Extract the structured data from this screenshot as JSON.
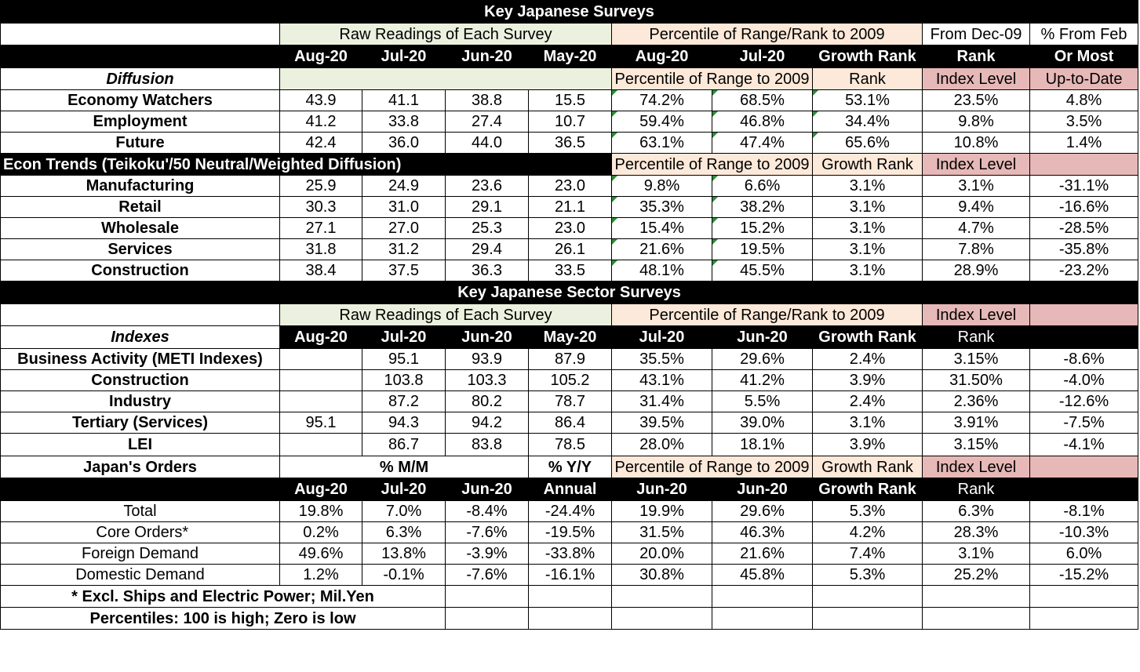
{
  "title1": "Key Japanese Surveys",
  "title2": "Key Japanese Sector Surveys",
  "s1": {
    "group_raw": "Raw Readings of Each Survey",
    "group_pct": "Percentile of Range/Rank  to 2009",
    "group_from": "From Dec-09",
    "group_chg": "% From Feb",
    "cols": [
      "Aug-20",
      "Jul-20",
      "Jun-20",
      "May-20",
      "Aug-20",
      "Jul-20",
      "Growth Rank",
      "Rank",
      "Or Most"
    ],
    "diffusion_label": "Diffusion",
    "diffusion_sub": [
      "Percentile of Range to 2009",
      "Rank",
      "Index Level",
      "Up-to-Date"
    ],
    "rows_a": [
      {
        "label": "Economy Watchers",
        "v": [
          "43.9",
          "41.1",
          "38.8",
          "15.5",
          "74.2%",
          "68.5%",
          "53.1%",
          "23.5%",
          "4.8%"
        ]
      },
      {
        "label": "Employment",
        "v": [
          "41.2",
          "33.8",
          "27.4",
          "10.7",
          "59.4%",
          "46.8%",
          "34.4%",
          "9.8%",
          "3.5%"
        ]
      },
      {
        "label": "Future",
        "v": [
          "42.4",
          "36.0",
          "44.0",
          "36.5",
          "63.1%",
          "47.4%",
          "65.6%",
          "10.8%",
          "1.4%"
        ]
      }
    ],
    "econ_label": "Econ Trends (Teikoku'/50 Neutral/Weighted Diffusion)",
    "econ_sub": [
      "Percentile of Range to 2009",
      "Growth Rank",
      "Index Level",
      ""
    ],
    "rows_b": [
      {
        "label": "Manufacturing",
        "v": [
          "25.9",
          "24.9",
          "23.6",
          "23.0",
          "9.8%",
          "6.6%",
          "3.1%",
          "3.1%",
          "-31.1%"
        ]
      },
      {
        "label": "Retail",
        "v": [
          "30.3",
          "31.0",
          "29.1",
          "21.1",
          "35.3%",
          "38.2%",
          "3.1%",
          "9.4%",
          "-16.6%"
        ]
      },
      {
        "label": "Wholesale",
        "v": [
          "27.1",
          "27.0",
          "25.3",
          "23.0",
          "15.4%",
          "15.2%",
          "3.1%",
          "4.7%",
          "-28.5%"
        ]
      },
      {
        "label": "Services",
        "v": [
          "31.8",
          "31.2",
          "29.4",
          "26.1",
          "21.6%",
          "19.5%",
          "3.1%",
          "7.8%",
          "-35.8%"
        ]
      },
      {
        "label": "Construction",
        "v": [
          "38.4",
          "37.5",
          "36.3",
          "33.5",
          "48.1%",
          "45.5%",
          "3.1%",
          "28.9%",
          "-23.2%"
        ]
      }
    ]
  },
  "s2": {
    "group_raw": "Raw Readings of Each Survey",
    "group_pct": "Percentile of Range/Rank to 2009",
    "group_idx": "Index Level",
    "indexes_label": "Indexes",
    "cols": [
      "Aug-20",
      "Jul-20",
      "Jun-20",
      "May-20",
      "Jul-20",
      "Jun-20",
      "Growth Rank",
      "Rank",
      ""
    ],
    "rows": [
      {
        "label": "Business Activity (METI Indexes)",
        "v": [
          "",
          "95.1",
          "93.9",
          "87.9",
          "35.5%",
          "29.6%",
          "2.4%",
          "3.15%",
          "-8.6%"
        ]
      },
      {
        "label": "Construction",
        "v": [
          "",
          "103.8",
          "103.3",
          "105.2",
          "43.1%",
          "41.2%",
          "3.9%",
          "31.50%",
          "-4.0%"
        ]
      },
      {
        "label": "Industry",
        "v": [
          "",
          "87.2",
          "80.2",
          "78.7",
          "31.4%",
          "5.5%",
          "2.4%",
          "2.36%",
          "-12.6%"
        ]
      },
      {
        "label": "Tertiary (Services)",
        "v": [
          "95.1",
          "94.3",
          "94.2",
          "86.4",
          "39.5%",
          "39.0%",
          "3.1%",
          "3.91%",
          "-7.5%"
        ]
      }
    ],
    "lei": {
      "label": "LEI",
      "v": [
        "",
        "86.7",
        "83.8",
        "78.5",
        "28.0%",
        "18.1%",
        "3.9%",
        "3.15%",
        "-4.1%"
      ]
    }
  },
  "s3": {
    "label": "Japan's Orders",
    "mm": "% M/M",
    "yy": "% Y/Y",
    "sub": [
      "Percentile of Range to 2009",
      "Growth Rank",
      "Index Level",
      ""
    ],
    "cols": [
      "Aug-20",
      "Jul-20",
      "Jun-20",
      "Annual",
      "Jun-20",
      "Jun-20",
      "Growth Rank",
      "Rank",
      ""
    ],
    "rows": [
      {
        "label": "Total",
        "v": [
          "19.8%",
          "7.0%",
          "-8.4%",
          "-24.4%",
          "19.9%",
          "29.6%",
          "5.3%",
          "6.3%",
          "-8.1%"
        ]
      },
      {
        "label": " Core Orders*",
        "v": [
          "0.2%",
          "6.3%",
          "-7.6%",
          "-19.5%",
          "31.5%",
          "46.3%",
          "4.2%",
          "28.3%",
          "-10.3%"
        ]
      },
      {
        "label": "Foreign Demand",
        "v": [
          "49.6%",
          "13.8%",
          "-3.9%",
          "-33.8%",
          "20.0%",
          "21.6%",
          "7.4%",
          "3.1%",
          "6.0%"
        ]
      },
      {
        "label": "Domestic Demand",
        "v": [
          "1.2%",
          "-0.1%",
          "-7.6%",
          "-16.1%",
          "30.8%",
          "45.8%",
          "5.3%",
          "25.2%",
          "-15.2%"
        ]
      }
    ]
  },
  "notes": [
    "* Excl. Ships and Electric Power; Mil.Yen",
    "Percentiles: 100 is high; Zero is low"
  ],
  "colors": {
    "header_bg": "#000000",
    "raw_bg": "#ebf1de",
    "pct_bg": "#fde9d9",
    "index_bg": "#e6b8b7",
    "flag": "#2e8b3a"
  }
}
